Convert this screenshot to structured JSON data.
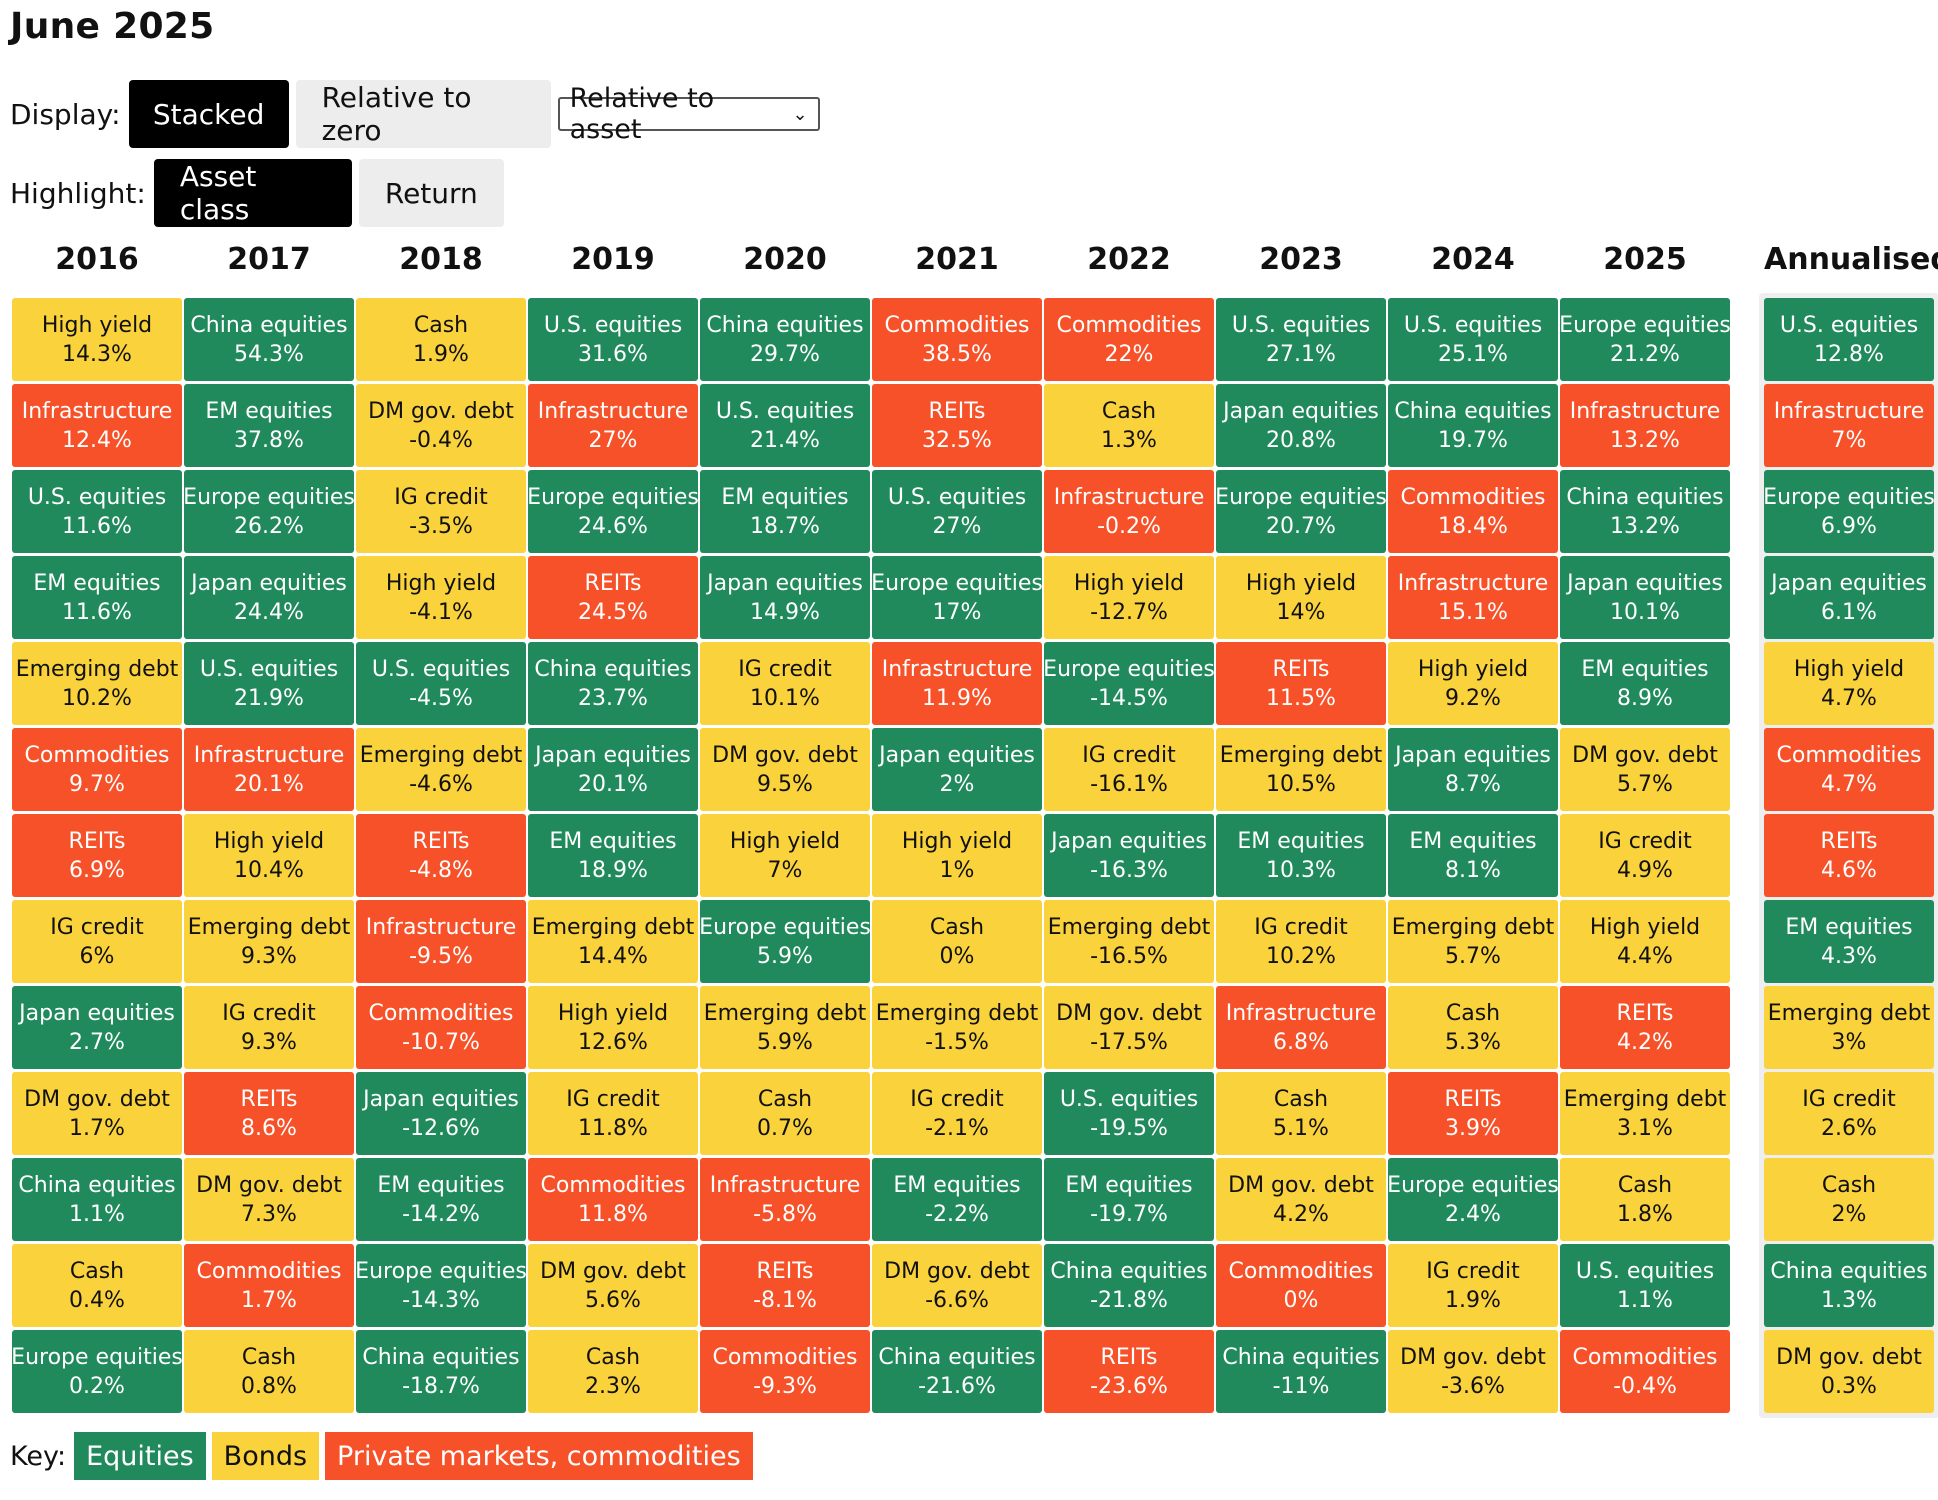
{
  "title": "June 2025",
  "display": {
    "label": "Display:",
    "stacked_label": "Stacked",
    "relative_zero_label": "Relative to zero",
    "relative_asset_label": "Relative to asset"
  },
  "highlight": {
    "label": "Highlight:",
    "asset_class_label": "Asset class",
    "return_label": "Return"
  },
  "key": {
    "label": "Key:",
    "equities": "Equities",
    "bonds": "Bonds",
    "private": "Private markets, commodities"
  },
  "colors": {
    "equities": "#218a5c",
    "bonds": "#fad23c",
    "private": "#f65128"
  },
  "chart_data": {
    "type": "table",
    "columns": [
      "2016",
      "2017",
      "2018",
      "2019",
      "2020",
      "2021",
      "2022",
      "2023",
      "2024",
      "2025",
      "Annualised"
    ],
    "cells": [
      [
        {
          "name": "High yield",
          "value": "14.3%",
          "class": "bonds"
        },
        {
          "name": "Infrastructure",
          "value": "12.4%",
          "class": "private"
        },
        {
          "name": "U.S. equities",
          "value": "11.6%",
          "class": "equities"
        },
        {
          "name": "EM equities",
          "value": "11.6%",
          "class": "equities"
        },
        {
          "name": "Emerging debt",
          "value": "10.2%",
          "class": "bonds"
        },
        {
          "name": "Commodities",
          "value": "9.7%",
          "class": "private"
        },
        {
          "name": "REITs",
          "value": "6.9%",
          "class": "private"
        },
        {
          "name": "IG credit",
          "value": "6%",
          "class": "bonds"
        },
        {
          "name": "Japan equities",
          "value": "2.7%",
          "class": "equities"
        },
        {
          "name": "DM gov. debt",
          "value": "1.7%",
          "class": "bonds"
        },
        {
          "name": "China equities",
          "value": "1.1%",
          "class": "equities"
        },
        {
          "name": "Cash",
          "value": "0.4%",
          "class": "bonds"
        },
        {
          "name": "Europe equities",
          "value": "0.2%",
          "class": "equities"
        }
      ],
      [
        {
          "name": "China equities",
          "value": "54.3%",
          "class": "equities"
        },
        {
          "name": "EM equities",
          "value": "37.8%",
          "class": "equities"
        },
        {
          "name": "Europe equities",
          "value": "26.2%",
          "class": "equities"
        },
        {
          "name": "Japan equities",
          "value": "24.4%",
          "class": "equities"
        },
        {
          "name": "U.S. equities",
          "value": "21.9%",
          "class": "equities"
        },
        {
          "name": "Infrastructure",
          "value": "20.1%",
          "class": "private"
        },
        {
          "name": "High yield",
          "value": "10.4%",
          "class": "bonds"
        },
        {
          "name": "Emerging debt",
          "value": "9.3%",
          "class": "bonds"
        },
        {
          "name": "IG credit",
          "value": "9.3%",
          "class": "bonds"
        },
        {
          "name": "REITs",
          "value": "8.6%",
          "class": "private"
        },
        {
          "name": "DM gov. debt",
          "value": "7.3%",
          "class": "bonds"
        },
        {
          "name": "Commodities",
          "value": "1.7%",
          "class": "private"
        },
        {
          "name": "Cash",
          "value": "0.8%",
          "class": "bonds"
        }
      ],
      [
        {
          "name": "Cash",
          "value": "1.9%",
          "class": "bonds"
        },
        {
          "name": "DM gov. debt",
          "value": "-0.4%",
          "class": "bonds"
        },
        {
          "name": "IG credit",
          "value": "-3.5%",
          "class": "bonds"
        },
        {
          "name": "High yield",
          "value": "-4.1%",
          "class": "bonds"
        },
        {
          "name": "U.S. equities",
          "value": "-4.5%",
          "class": "equities"
        },
        {
          "name": "Emerging debt",
          "value": "-4.6%",
          "class": "bonds"
        },
        {
          "name": "REITs",
          "value": "-4.8%",
          "class": "private"
        },
        {
          "name": "Infrastructure",
          "value": "-9.5%",
          "class": "private"
        },
        {
          "name": "Commodities",
          "value": "-10.7%",
          "class": "private"
        },
        {
          "name": "Japan equities",
          "value": "-12.6%",
          "class": "equities"
        },
        {
          "name": "EM equities",
          "value": "-14.2%",
          "class": "equities"
        },
        {
          "name": "Europe equities",
          "value": "-14.3%",
          "class": "equities"
        },
        {
          "name": "China equities",
          "value": "-18.7%",
          "class": "equities"
        }
      ],
      [
        {
          "name": "U.S. equities",
          "value": "31.6%",
          "class": "equities"
        },
        {
          "name": "Infrastructure",
          "value": "27%",
          "class": "private"
        },
        {
          "name": "Europe equities",
          "value": "24.6%",
          "class": "equities"
        },
        {
          "name": "REITs",
          "value": "24.5%",
          "class": "private"
        },
        {
          "name": "China equities",
          "value": "23.7%",
          "class": "equities"
        },
        {
          "name": "Japan equities",
          "value": "20.1%",
          "class": "equities"
        },
        {
          "name": "EM equities",
          "value": "18.9%",
          "class": "equities"
        },
        {
          "name": "Emerging debt",
          "value": "14.4%",
          "class": "bonds"
        },
        {
          "name": "High yield",
          "value": "12.6%",
          "class": "bonds"
        },
        {
          "name": "IG credit",
          "value": "11.8%",
          "class": "bonds"
        },
        {
          "name": "Commodities",
          "value": "11.8%",
          "class": "private"
        },
        {
          "name": "DM gov. debt",
          "value": "5.6%",
          "class": "bonds"
        },
        {
          "name": "Cash",
          "value": "2.3%",
          "class": "bonds"
        }
      ],
      [
        {
          "name": "China equities",
          "value": "29.7%",
          "class": "equities"
        },
        {
          "name": "U.S. equities",
          "value": "21.4%",
          "class": "equities"
        },
        {
          "name": "EM equities",
          "value": "18.7%",
          "class": "equities"
        },
        {
          "name": "Japan equities",
          "value": "14.9%",
          "class": "equities"
        },
        {
          "name": "IG credit",
          "value": "10.1%",
          "class": "bonds"
        },
        {
          "name": "DM gov. debt",
          "value": "9.5%",
          "class": "bonds"
        },
        {
          "name": "High yield",
          "value": "7%",
          "class": "bonds"
        },
        {
          "name": "Europe equities",
          "value": "5.9%",
          "class": "equities"
        },
        {
          "name": "Emerging debt",
          "value": "5.9%",
          "class": "bonds"
        },
        {
          "name": "Cash",
          "value": "0.7%",
          "class": "bonds"
        },
        {
          "name": "Infrastructure",
          "value": "-5.8%",
          "class": "private"
        },
        {
          "name": "REITs",
          "value": "-8.1%",
          "class": "private"
        },
        {
          "name": "Commodities",
          "value": "-9.3%",
          "class": "private"
        }
      ],
      [
        {
          "name": "Commodities",
          "value": "38.5%",
          "class": "private"
        },
        {
          "name": "REITs",
          "value": "32.5%",
          "class": "private"
        },
        {
          "name": "U.S. equities",
          "value": "27%",
          "class": "equities"
        },
        {
          "name": "Europe equities",
          "value": "17%",
          "class": "equities"
        },
        {
          "name": "Infrastructure",
          "value": "11.9%",
          "class": "private"
        },
        {
          "name": "Japan equities",
          "value": "2%",
          "class": "equities"
        },
        {
          "name": "High yield",
          "value": "1%",
          "class": "bonds"
        },
        {
          "name": "Cash",
          "value": "0%",
          "class": "bonds"
        },
        {
          "name": "Emerging debt",
          "value": "-1.5%",
          "class": "bonds"
        },
        {
          "name": "IG credit",
          "value": "-2.1%",
          "class": "bonds"
        },
        {
          "name": "EM equities",
          "value": "-2.2%",
          "class": "equities"
        },
        {
          "name": "DM gov. debt",
          "value": "-6.6%",
          "class": "bonds"
        },
        {
          "name": "China equities",
          "value": "-21.6%",
          "class": "equities"
        }
      ],
      [
        {
          "name": "Commodities",
          "value": "22%",
          "class": "private"
        },
        {
          "name": "Cash",
          "value": "1.3%",
          "class": "bonds"
        },
        {
          "name": "Infrastructure",
          "value": "-0.2%",
          "class": "private"
        },
        {
          "name": "High yield",
          "value": "-12.7%",
          "class": "bonds"
        },
        {
          "name": "Europe equities",
          "value": "-14.5%",
          "class": "equities"
        },
        {
          "name": "IG credit",
          "value": "-16.1%",
          "class": "bonds"
        },
        {
          "name": "Japan equities",
          "value": "-16.3%",
          "class": "equities"
        },
        {
          "name": "Emerging debt",
          "value": "-16.5%",
          "class": "bonds"
        },
        {
          "name": "DM gov. debt",
          "value": "-17.5%",
          "class": "bonds"
        },
        {
          "name": "U.S. equities",
          "value": "-19.5%",
          "class": "equities"
        },
        {
          "name": "EM equities",
          "value": "-19.7%",
          "class": "equities"
        },
        {
          "name": "China equities",
          "value": "-21.8%",
          "class": "equities"
        },
        {
          "name": "REITs",
          "value": "-23.6%",
          "class": "private"
        }
      ],
      [
        {
          "name": "U.S. equities",
          "value": "27.1%",
          "class": "equities"
        },
        {
          "name": "Japan equities",
          "value": "20.8%",
          "class": "equities"
        },
        {
          "name": "Europe equities",
          "value": "20.7%",
          "class": "equities"
        },
        {
          "name": "High yield",
          "value": "14%",
          "class": "bonds"
        },
        {
          "name": "REITs",
          "value": "11.5%",
          "class": "private"
        },
        {
          "name": "Emerging debt",
          "value": "10.5%",
          "class": "bonds"
        },
        {
          "name": "EM equities",
          "value": "10.3%",
          "class": "equities"
        },
        {
          "name": "IG credit",
          "value": "10.2%",
          "class": "bonds"
        },
        {
          "name": "Infrastructure",
          "value": "6.8%",
          "class": "private"
        },
        {
          "name": "Cash",
          "value": "5.1%",
          "class": "bonds"
        },
        {
          "name": "DM gov. debt",
          "value": "4.2%",
          "class": "bonds"
        },
        {
          "name": "Commodities",
          "value": "0%",
          "class": "private"
        },
        {
          "name": "China equities",
          "value": "-11%",
          "class": "equities"
        }
      ],
      [
        {
          "name": "U.S. equities",
          "value": "25.1%",
          "class": "equities"
        },
        {
          "name": "China equities",
          "value": "19.7%",
          "class": "equities"
        },
        {
          "name": "Commodities",
          "value": "18.4%",
          "class": "private"
        },
        {
          "name": "Infrastructure",
          "value": "15.1%",
          "class": "private"
        },
        {
          "name": "High yield",
          "value": "9.2%",
          "class": "bonds"
        },
        {
          "name": "Japan equities",
          "value": "8.7%",
          "class": "equities"
        },
        {
          "name": "EM equities",
          "value": "8.1%",
          "class": "equities"
        },
        {
          "name": "Emerging debt",
          "value": "5.7%",
          "class": "bonds"
        },
        {
          "name": "Cash",
          "value": "5.3%",
          "class": "bonds"
        },
        {
          "name": "REITs",
          "value": "3.9%",
          "class": "private"
        },
        {
          "name": "Europe equities",
          "value": "2.4%",
          "class": "equities"
        },
        {
          "name": "IG credit",
          "value": "1.9%",
          "class": "bonds"
        },
        {
          "name": "DM gov. debt",
          "value": "-3.6%",
          "class": "bonds"
        }
      ],
      [
        {
          "name": "Europe equities",
          "value": "21.2%",
          "class": "equities"
        },
        {
          "name": "Infrastructure",
          "value": "13.2%",
          "class": "private"
        },
        {
          "name": "China equities",
          "value": "13.2%",
          "class": "equities"
        },
        {
          "name": "Japan equities",
          "value": "10.1%",
          "class": "equities"
        },
        {
          "name": "EM equities",
          "value": "8.9%",
          "class": "equities"
        },
        {
          "name": "DM gov. debt",
          "value": "5.7%",
          "class": "bonds"
        },
        {
          "name": "IG credit",
          "value": "4.9%",
          "class": "bonds"
        },
        {
          "name": "High yield",
          "value": "4.4%",
          "class": "bonds"
        },
        {
          "name": "REITs",
          "value": "4.2%",
          "class": "private"
        },
        {
          "name": "Emerging debt",
          "value": "3.1%",
          "class": "bonds"
        },
        {
          "name": "Cash",
          "value": "1.8%",
          "class": "bonds"
        },
        {
          "name": "U.S. equities",
          "value": "1.1%",
          "class": "equities"
        },
        {
          "name": "Commodities",
          "value": "-0.4%",
          "class": "private"
        }
      ],
      [
        {
          "name": "U.S. equities",
          "value": "12.8%",
          "class": "equities"
        },
        {
          "name": "Infrastructure",
          "value": "7%",
          "class": "private"
        },
        {
          "name": "Europe equities",
          "value": "6.9%",
          "class": "equities"
        },
        {
          "name": "Japan equities",
          "value": "6.1%",
          "class": "equities"
        },
        {
          "name": "High yield",
          "value": "4.7%",
          "class": "bonds"
        },
        {
          "name": "Commodities",
          "value": "4.7%",
          "class": "private"
        },
        {
          "name": "REITs",
          "value": "4.6%",
          "class": "private"
        },
        {
          "name": "EM equities",
          "value": "4.3%",
          "class": "equities"
        },
        {
          "name": "Emerging debt",
          "value": "3%",
          "class": "bonds"
        },
        {
          "name": "IG credit",
          "value": "2.6%",
          "class": "bonds"
        },
        {
          "name": "Cash",
          "value": "2%",
          "class": "bonds"
        },
        {
          "name": "China equities",
          "value": "1.3%",
          "class": "equities"
        },
        {
          "name": "DM gov. debt",
          "value": "0.3%",
          "class": "bonds"
        }
      ]
    ]
  }
}
